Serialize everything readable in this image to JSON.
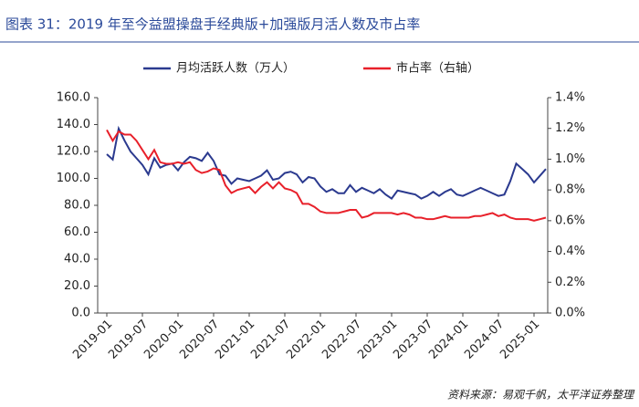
{
  "chart_data": {
    "type": "line",
    "title": "图表 31：2019 年至今益盟操盘手经典版+加强版月活人数及市占率",
    "source": "资料来源：易观千帆，太平洋证券整理",
    "categories": [
      "2019-01",
      null,
      null,
      null,
      null,
      null,
      "2019-07",
      null,
      null,
      null,
      null,
      null,
      "2020-01",
      null,
      null,
      null,
      null,
      null,
      "2020-07",
      null,
      null,
      null,
      null,
      null,
      "2021-01",
      null,
      null,
      null,
      null,
      null,
      "2021-07",
      null,
      null,
      null,
      null,
      null,
      "2022-01",
      null,
      null,
      null,
      null,
      null,
      "2022-07",
      null,
      null,
      null,
      null,
      null,
      "2023-01",
      null,
      null,
      null,
      null,
      null,
      "2023-07",
      null,
      null,
      null,
      null,
      null,
      "2024-01",
      null,
      null,
      null,
      null,
      null,
      "2024-07",
      null,
      null,
      null,
      null,
      null,
      "2025-01",
      null,
      null
    ],
    "series": [
      {
        "name": "月均活跃人数（万人）",
        "color": "#2b3a8f",
        "values": [
          118,
          114,
          137,
          128,
          120,
          115,
          110,
          103,
          115,
          108,
          110,
          111,
          106,
          112,
          116,
          115,
          113,
          119,
          113,
          103,
          102,
          96,
          100,
          99,
          98,
          100,
          102,
          106,
          99,
          100,
          104,
          105,
          103,
          97,
          101,
          100,
          94,
          90,
          92,
          89,
          89,
          95,
          90,
          93,
          91,
          89,
          92,
          88,
          85,
          91,
          90,
          89,
          88,
          85,
          87,
          90,
          87,
          90,
          92,
          88,
          87,
          89,
          91,
          93,
          91,
          89,
          87,
          88,
          98,
          111,
          107,
          103,
          97,
          102,
          107
        ]
      },
      {
        "name": "市占率（右轴）",
        "color": "#e8202a",
        "axis": "y2",
        "values": [
          1.19,
          1.12,
          1.18,
          1.16,
          1.16,
          1.12,
          1.06,
          1.0,
          1.06,
          0.98,
          0.97,
          0.97,
          0.98,
          0.97,
          0.98,
          0.93,
          0.91,
          0.92,
          0.94,
          0.93,
          0.83,
          0.78,
          0.8,
          0.81,
          0.82,
          0.78,
          0.82,
          0.85,
          0.81,
          0.85,
          0.81,
          0.8,
          0.78,
          0.71,
          0.71,
          0.69,
          0.66,
          0.65,
          0.65,
          0.65,
          0.66,
          0.67,
          0.67,
          0.62,
          0.63,
          0.65,
          0.65,
          0.65,
          0.65,
          0.64,
          0.65,
          0.64,
          0.62,
          0.62,
          0.61,
          0.61,
          0.62,
          0.63,
          0.62,
          0.62,
          0.62,
          0.62,
          0.63,
          0.63,
          0.64,
          0.65,
          0.63,
          0.64,
          0.62,
          0.61,
          0.61,
          0.61,
          0.6,
          0.61,
          0.62
        ]
      }
    ],
    "ylim": [
      0,
      160
    ],
    "yticks": [
      {
        "value": 0,
        "label": "0.0"
      },
      {
        "value": 20,
        "label": "20.0"
      },
      {
        "value": 40,
        "label": "40.0"
      },
      {
        "value": 60,
        "label": "60.0"
      },
      {
        "value": 80,
        "label": "80.0"
      },
      {
        "value": 100,
        "label": "100.0"
      },
      {
        "value": 120,
        "label": "120.0"
      },
      {
        "value": 140,
        "label": "140.0"
      },
      {
        "value": 160,
        "label": "160.0"
      }
    ],
    "y2lim": [
      0,
      1.4
    ],
    "y2ticks": [
      {
        "value": 0,
        "label": "0.0%"
      },
      {
        "value": 0.2,
        "label": "0.2%"
      },
      {
        "value": 0.4,
        "label": "0.4%"
      },
      {
        "value": 0.6,
        "label": "0.6%"
      },
      {
        "value": 0.8,
        "label": "0.8%"
      },
      {
        "value": 1.0,
        "label": "1.0%"
      },
      {
        "value": 1.2,
        "label": "1.2%"
      },
      {
        "value": 1.4,
        "label": "1.4%"
      }
    ]
  }
}
